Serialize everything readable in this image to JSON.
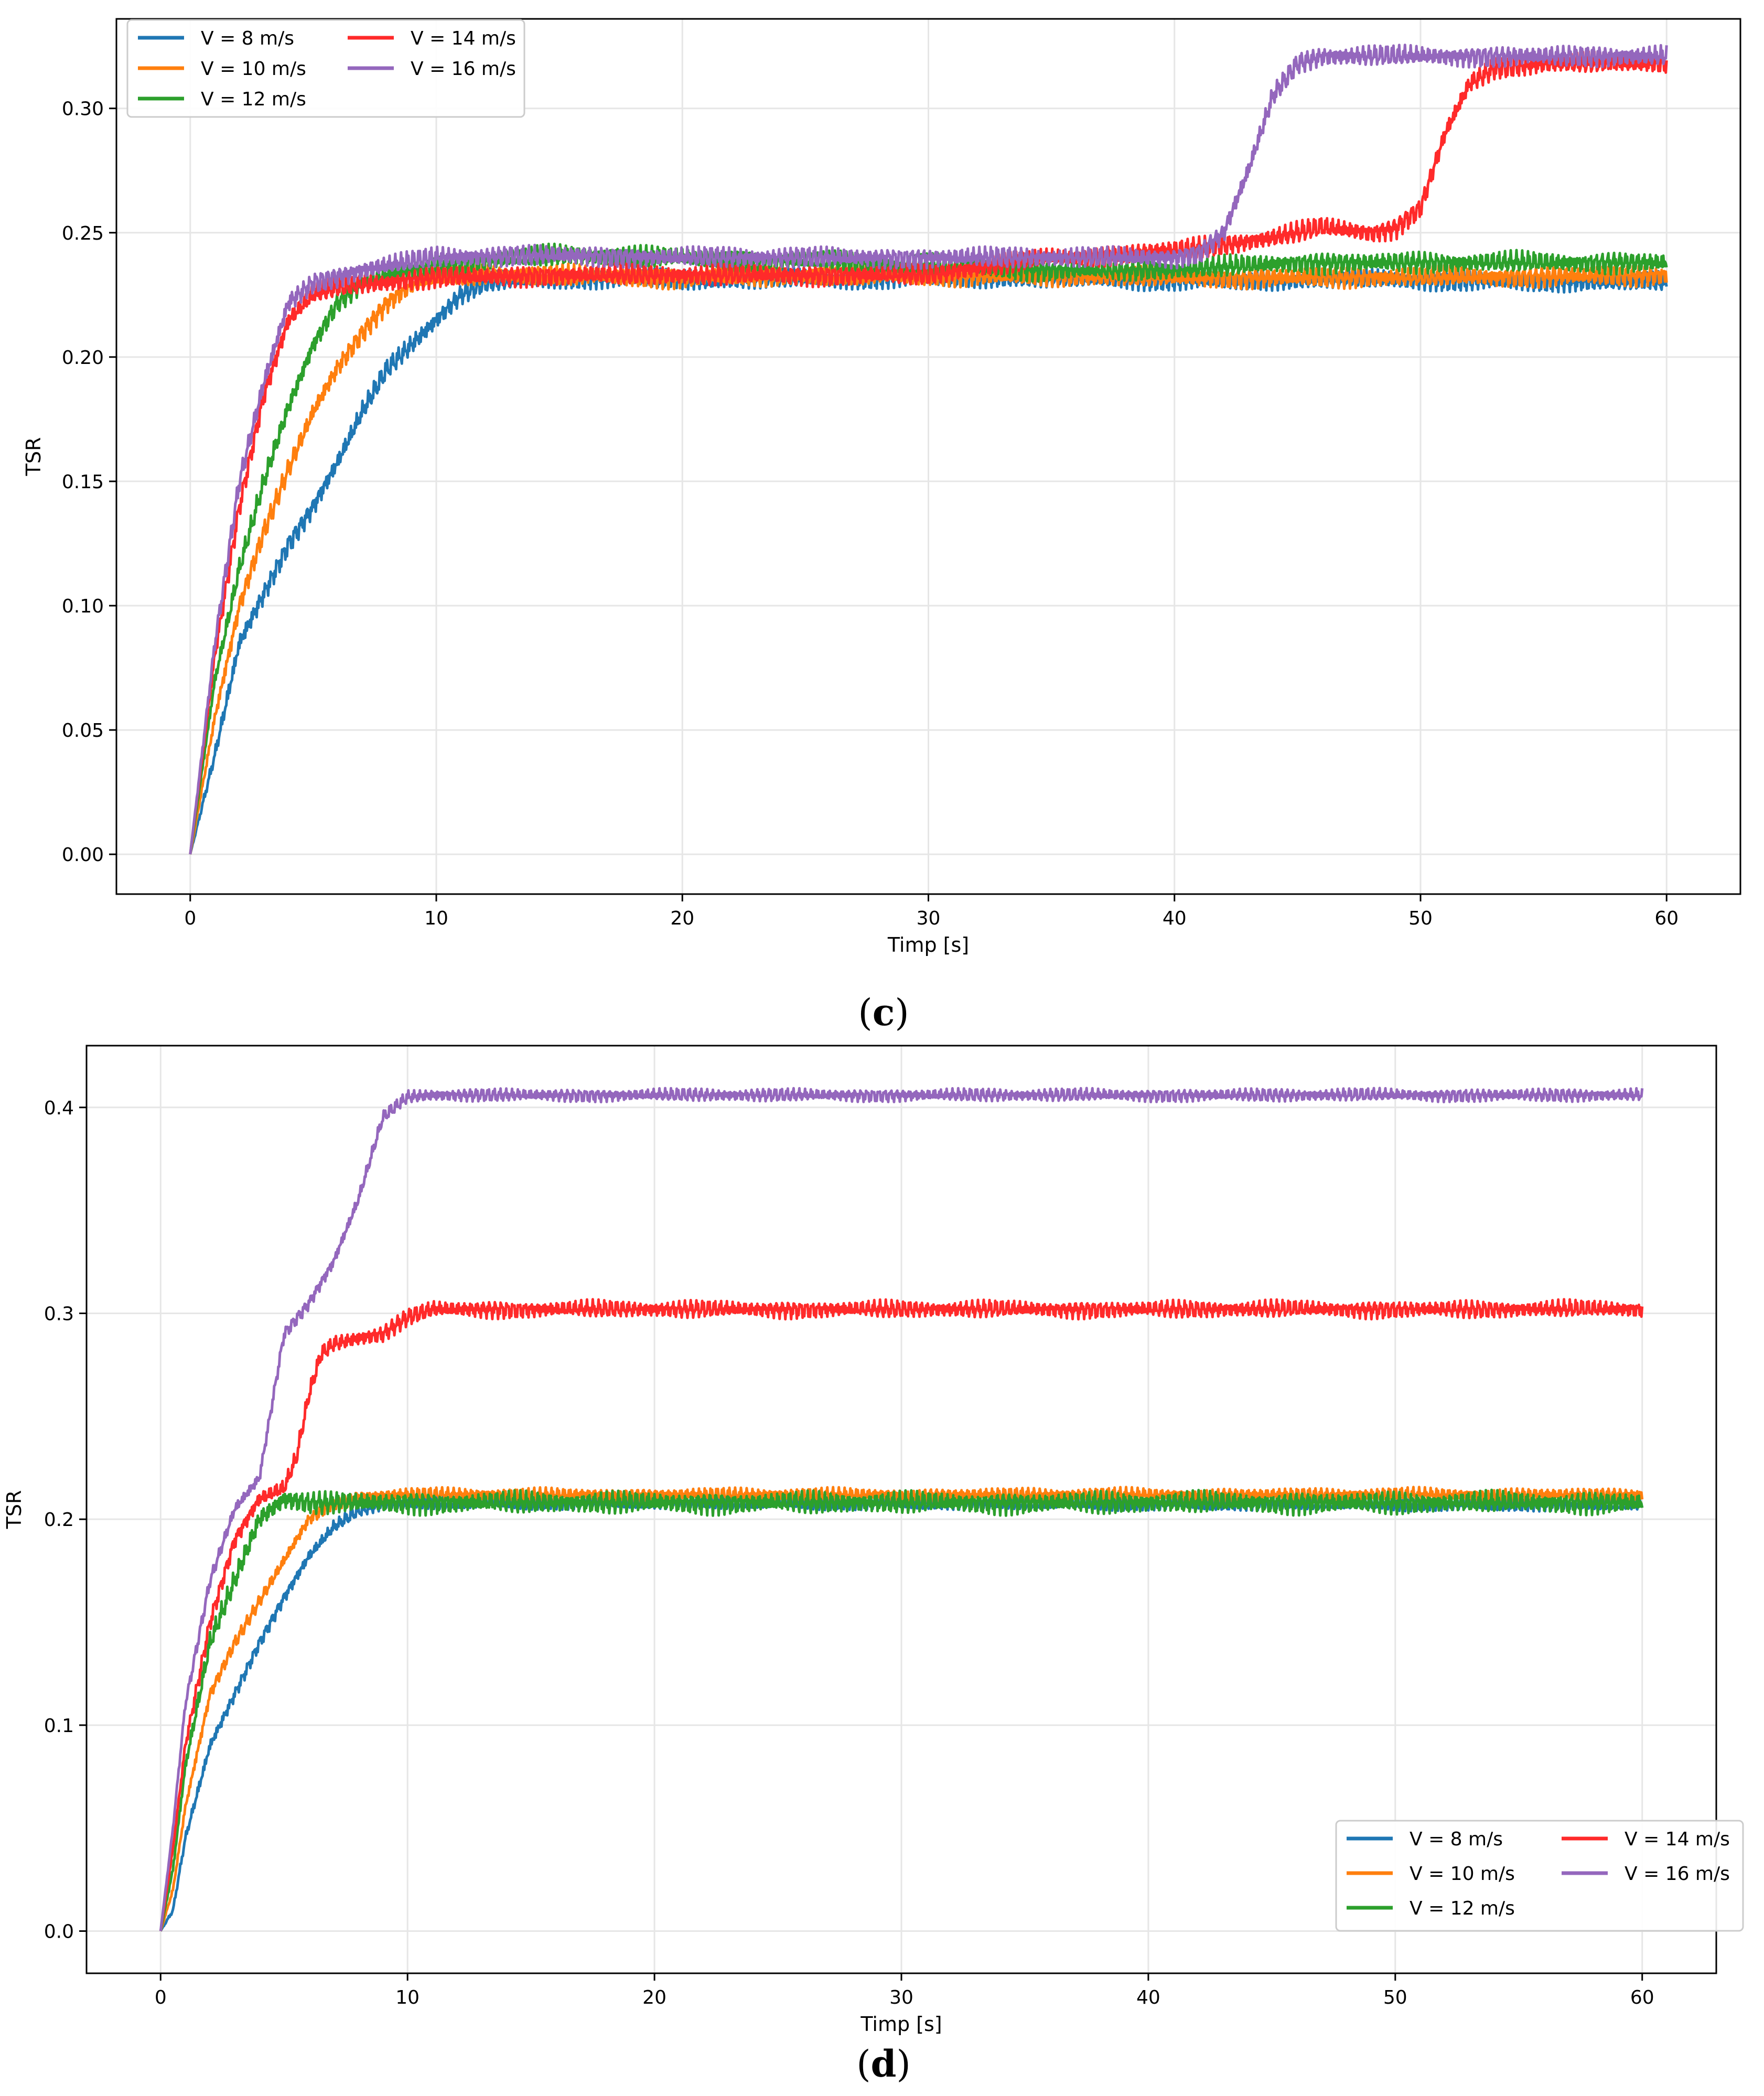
{
  "colors": {
    "v8": "#1f77b4",
    "v10": "#ff7f0e",
    "v12": "#2ca02c",
    "v14": "#ff2a2a",
    "v16": "#9467bd",
    "grid": "#e6e6e6",
    "axis": "#000000"
  },
  "chart_data": [
    {
      "type": "line",
      "panel": "c",
      "caption_open": "(",
      "caption_letter": "c",
      "caption_close": ")",
      "xlabel": "Timp [s]",
      "ylabel": "TSR",
      "xlim": [
        -3,
        63
      ],
      "ylim": [
        -0.016,
        0.336
      ],
      "xticks": [
        0,
        10,
        20,
        30,
        40,
        50,
        60
      ],
      "xtick_labels": [
        "0",
        "10",
        "20",
        "30",
        "40",
        "50",
        "60"
      ],
      "yticks": [
        0.0,
        0.05,
        0.1,
        0.15,
        0.2,
        0.25,
        0.3
      ],
      "ytick_labels": [
        "0.00",
        "0.05",
        "0.10",
        "0.15",
        "0.20",
        "0.25",
        "0.30"
      ],
      "grid": true,
      "legend_position": "top-left",
      "legend_columns": 2,
      "series": [
        {
          "name": "V = 8 m/s",
          "color_key": "v8",
          "noise": 0.004,
          "x": [
            0,
            1,
            2,
            3,
            4,
            5,
            6,
            7,
            8,
            9,
            10,
            11,
            12,
            15,
            20,
            30,
            40,
            50,
            60
          ],
          "y": [
            0,
            0.04,
            0.085,
            0.105,
            0.125,
            0.14,
            0.158,
            0.178,
            0.195,
            0.205,
            0.215,
            0.225,
            0.23,
            0.232,
            0.231,
            0.232,
            0.231,
            0.231,
            0.23
          ]
        },
        {
          "name": "V = 10 m/s",
          "color_key": "v10",
          "noise": 0.004,
          "x": [
            0,
            1,
            2,
            3,
            4,
            5,
            6,
            7,
            8,
            9,
            10,
            12,
            15,
            20,
            30,
            40,
            50,
            60
          ],
          "y": [
            0,
            0.055,
            0.1,
            0.13,
            0.155,
            0.178,
            0.196,
            0.21,
            0.222,
            0.229,
            0.232,
            0.233,
            0.233,
            0.232,
            0.233,
            0.232,
            0.232,
            0.233
          ]
        },
        {
          "name": "V = 12 m/s",
          "color_key": "v12",
          "noise": 0.004,
          "x": [
            0,
            1,
            2,
            3,
            4,
            5,
            6,
            7,
            8,
            10,
            15,
            20,
            30,
            35,
            40,
            45,
            50,
            60
          ],
          "y": [
            0,
            0.07,
            0.115,
            0.15,
            0.18,
            0.205,
            0.222,
            0.23,
            0.233,
            0.237,
            0.241,
            0.24,
            0.237,
            0.235,
            0.235,
            0.238,
            0.238,
            0.238
          ]
        },
        {
          "name": "V = 14 m/s",
          "color_key": "v14",
          "noise": 0.004,
          "x": [
            0,
            1,
            2,
            3,
            4,
            5,
            6,
            8,
            10,
            15,
            20,
            30,
            35,
            40,
            42,
            44,
            46,
            48,
            49,
            50,
            51,
            52,
            53,
            55,
            60
          ],
          "y": [
            0,
            0.08,
            0.14,
            0.185,
            0.215,
            0.225,
            0.228,
            0.23,
            0.232,
            0.233,
            0.233,
            0.233,
            0.24,
            0.243,
            0.245,
            0.248,
            0.252,
            0.25,
            0.252,
            0.26,
            0.29,
            0.31,
            0.316,
            0.318,
            0.318
          ]
        },
        {
          "name": "V = 16 m/s",
          "color_key": "v16",
          "noise": 0.004,
          "x": [
            0,
            1,
            2,
            3,
            4,
            5,
            7,
            10,
            15,
            20,
            30,
            40,
            41,
            42,
            43,
            44,
            45,
            46,
            50,
            60
          ],
          "y": [
            0,
            0.085,
            0.15,
            0.19,
            0.222,
            0.23,
            0.235,
            0.24,
            0.241,
            0.24,
            0.24,
            0.24,
            0.242,
            0.25,
            0.275,
            0.305,
            0.318,
            0.321,
            0.321,
            0.321
          ]
        }
      ]
    },
    {
      "type": "line",
      "panel": "d",
      "caption_open": "(",
      "caption_letter": "d",
      "caption_close": ")",
      "xlabel": "Timp [s]",
      "ylabel": "TSR",
      "xlim": [
        -3,
        63
      ],
      "ylim": [
        -0.0205,
        0.43
      ],
      "xticks": [
        0,
        10,
        20,
        30,
        40,
        50,
        60
      ],
      "xtick_labels": [
        "0",
        "10",
        "20",
        "30",
        "40",
        "50",
        "60"
      ],
      "yticks": [
        0.0,
        0.1,
        0.2,
        0.3,
        0.4
      ],
      "ytick_labels": [
        "0.0",
        "0.1",
        "0.2",
        "0.3",
        "0.4"
      ],
      "grid": true,
      "legend_position": "bottom-right",
      "legend_columns": 2,
      "series": [
        {
          "name": "V = 8 m/s",
          "color_key": "v8",
          "noise": 0.003,
          "x": [
            0,
            0.5,
            1,
            2,
            3,
            4,
            5,
            6,
            7,
            8,
            9,
            10,
            15,
            20,
            60
          ],
          "y": [
            0,
            0.01,
            0.045,
            0.09,
            0.115,
            0.14,
            0.162,
            0.182,
            0.196,
            0.204,
            0.207,
            0.208,
            0.208,
            0.208,
            0.207
          ]
        },
        {
          "name": "V = 10 m/s",
          "color_key": "v10",
          "noise": 0.003,
          "x": [
            0,
            0.5,
            1,
            2,
            3,
            4,
            5,
            6,
            7,
            8,
            10,
            20,
            60
          ],
          "y": [
            0,
            0.02,
            0.06,
            0.115,
            0.14,
            0.16,
            0.18,
            0.2,
            0.208,
            0.211,
            0.212,
            0.212,
            0.212
          ]
        },
        {
          "name": "V = 12 m/s",
          "color_key": "v12",
          "noise": 0.005,
          "x": [
            0,
            0.5,
            1,
            2,
            3,
            4,
            5,
            6,
            8,
            10,
            20,
            60
          ],
          "y": [
            0,
            0.03,
            0.08,
            0.14,
            0.17,
            0.2,
            0.21,
            0.208,
            0.208,
            0.208,
            0.208,
            0.208
          ]
        },
        {
          "name": "V = 14 m/s",
          "color_key": "v14",
          "noise": 0.004,
          "x": [
            0,
            0.5,
            1,
            2,
            3,
            4,
            5,
            5.5,
            6,
            6.5,
            7,
            8,
            9,
            10,
            11,
            12,
            20,
            60
          ],
          "y": [
            0,
            0.04,
            0.09,
            0.15,
            0.19,
            0.21,
            0.215,
            0.23,
            0.26,
            0.28,
            0.285,
            0.288,
            0.29,
            0.298,
            0.302,
            0.302,
            0.302,
            0.302
          ]
        },
        {
          "name": "V = 16 m/s",
          "color_key": "v16",
          "noise": 0.003,
          "x": [
            0,
            0.5,
            1,
            2,
            3,
            4,
            5,
            6,
            7,
            8,
            9,
            10,
            11,
            20,
            60
          ],
          "y": [
            0,
            0.05,
            0.11,
            0.17,
            0.205,
            0.22,
            0.29,
            0.305,
            0.325,
            0.355,
            0.395,
            0.405,
            0.406,
            0.406,
            0.406
          ]
        }
      ]
    }
  ]
}
